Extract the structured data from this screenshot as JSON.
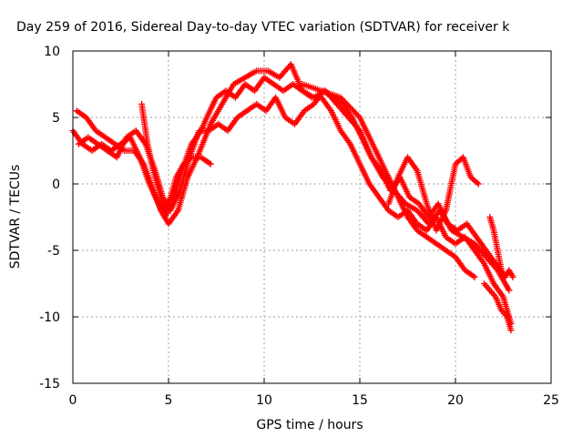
{
  "chart_data": {
    "type": "scatter",
    "title": "Day 259 of 2016, Sidereal Day-to-day VTEC variation (SDTVAR) for receiver k",
    "xlabel": "GPS time / hours",
    "ylabel": "SDTVAR / TECUs",
    "xlim": [
      0,
      25
    ],
    "ylim": [
      -15,
      10
    ],
    "xticks": [
      "0",
      "5",
      "10",
      "15",
      "20",
      "25"
    ],
    "yticks": [
      "10",
      "5",
      "0",
      "-5",
      "-10",
      "-15"
    ],
    "grid": true,
    "marker": "+",
    "color": "#ff0000",
    "series": [
      {
        "x": [
          0.0,
          0.5,
          1.0,
          1.5,
          2.0,
          2.5,
          3.0,
          3.5,
          4.0,
          4.5,
          4.8,
          5.2,
          5.7,
          6.2,
          6.7,
          7.0,
          7.5,
          8.0,
          8.5,
          9.0,
          9.5,
          10.0,
          10.5,
          11.0,
          11.5,
          12.0,
          12.5,
          13.0,
          13.5,
          14.0,
          14.5,
          15.0,
          15.5,
          16.0,
          16.5,
          17.0,
          17.5,
          18.0,
          18.5,
          19.0,
          19.5,
          20.0,
          20.5,
          21.0,
          21.5,
          22.0,
          22.5,
          22.9
        ],
        "y": [
          4.0,
          3.0,
          2.5,
          3.0,
          2.5,
          3.0,
          3.5,
          2.0,
          0.0,
          -1.5,
          -2.5,
          -1.5,
          1.0,
          3.0,
          4.0,
          5.0,
          6.5,
          7.0,
          6.5,
          7.5,
          7.0,
          8.0,
          7.5,
          7.0,
          7.5,
          7.0,
          6.5,
          6.5,
          5.5,
          4.0,
          3.0,
          1.5,
          0.0,
          -1.0,
          -2.0,
          -2.5,
          -2.0,
          -3.0,
          -3.5,
          -2.5,
          -4.0,
          -4.5,
          -4.0,
          -5.0,
          -6.0,
          -7.5,
          -8.5,
          -10.5
        ]
      },
      {
        "x": [
          0.2,
          0.7,
          1.2,
          1.7,
          2.2,
          2.7,
          3.2,
          3.7,
          4.2,
          4.6,
          5.0,
          5.5,
          6.0,
          6.5,
          7.2,
          7.8,
          8.4,
          9.0,
          9.6,
          10.2,
          10.8,
          11.4,
          12.0,
          12.6,
          13.2,
          13.8,
          14.4,
          15.0,
          15.6,
          16.2,
          16.8,
          17.4,
          18.0,
          18.6,
          19.2,
          19.8,
          20.4,
          21.0,
          21.6,
          22.2,
          22.8
        ],
        "y": [
          5.5,
          5.0,
          4.0,
          3.5,
          3.0,
          2.5,
          2.5,
          1.5,
          -0.5,
          -2.0,
          -3.0,
          -2.0,
          0.5,
          2.0,
          4.5,
          6.0,
          7.5,
          8.0,
          8.5,
          8.5,
          8.0,
          9.0,
          7.0,
          6.5,
          7.0,
          6.0,
          5.0,
          4.0,
          2.0,
          0.5,
          -0.5,
          -1.5,
          -2.0,
          -3.0,
          -2.0,
          -3.5,
          -4.0,
          -4.5,
          -5.5,
          -6.5,
          -8.0
        ]
      },
      {
        "x": [
          0.3,
          0.8,
          1.3,
          1.8,
          2.3,
          2.8,
          3.3,
          3.8,
          4.3,
          4.7,
          5.1,
          5.6,
          6.1,
          6.6,
          7.1,
          7.6,
          8.1,
          8.6,
          9.1,
          9.6,
          10.1,
          10.6,
          11.1,
          11.6,
          12.1,
          12.6,
          13.1,
          13.6,
          14.1,
          14.6,
          15.1,
          15.6,
          16.1,
          16.6,
          17.1,
          17.6,
          18.1,
          18.6,
          19.1,
          19.6,
          20.1,
          20.6,
          21.1,
          21.6,
          22.1,
          22.6
        ],
        "y": [
          3.0,
          3.5,
          3.0,
          2.5,
          2.0,
          3.5,
          4.0,
          3.0,
          1.0,
          -1.0,
          -2.0,
          -0.5,
          2.0,
          4.0,
          4.0,
          4.5,
          4.0,
          5.0,
          5.5,
          6.0,
          5.5,
          6.5,
          5.0,
          4.5,
          5.5,
          6.0,
          7.0,
          6.5,
          6.0,
          5.0,
          3.5,
          2.0,
          1.0,
          -0.5,
          0.5,
          -1.0,
          -1.5,
          -2.5,
          -1.5,
          -3.0,
          -3.5,
          -3.0,
          -4.0,
          -5.0,
          -6.0,
          -7.0
        ]
      },
      {
        "x": [
          3.6,
          3.9,
          4.2,
          4.5,
          4.8,
          5.1,
          5.4,
          5.8,
          6.2,
          6.7,
          7.2
        ],
        "y": [
          6.0,
          3.0,
          1.0,
          -0.5,
          -2.0,
          -1.0,
          0.5,
          1.5,
          2.0,
          2.0,
          1.5
        ]
      },
      {
        "x": [
          12.0,
          13.0,
          14.0,
          15.0,
          16.0,
          16.5,
          17.0,
          17.5,
          18.0,
          18.5,
          19.0,
          19.5,
          20.0,
          20.5,
          21.0
        ],
        "y": [
          7.5,
          7.0,
          6.5,
          5.0,
          2.0,
          0.5,
          -1.0,
          -2.5,
          -3.5,
          -4.0,
          -4.5,
          -5.0,
          -5.5,
          -6.5,
          -7.0
        ]
      },
      {
        "x": [
          16.5,
          17.0,
          17.5,
          18.0,
          18.5,
          19.0,
          19.5,
          20.0,
          20.4,
          20.8,
          21.2
        ],
        "y": [
          -1.5,
          0.5,
          2.0,
          1.0,
          -1.5,
          -3.5,
          -2.0,
          1.5,
          2.0,
          0.5,
          0.0
        ]
      },
      {
        "x": [
          21.8,
          22.0,
          22.2,
          22.4,
          22.6,
          22.8,
          23.0
        ],
        "y": [
          -2.5,
          -3.5,
          -5.0,
          -6.5,
          -7.0,
          -6.5,
          -7.0
        ]
      },
      {
        "x": [
          21.5,
          21.8,
          22.1,
          22.4,
          22.7,
          22.9
        ],
        "y": [
          -7.5,
          -8.0,
          -8.5,
          -9.5,
          -10.0,
          -11.0
        ]
      }
    ]
  }
}
